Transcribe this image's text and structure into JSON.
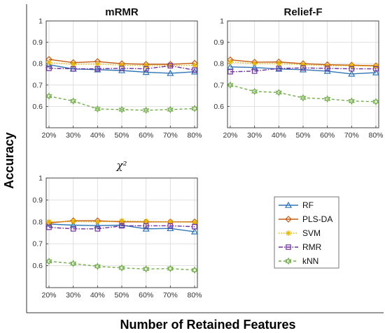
{
  "figure": {
    "ylabel": "Accuracy",
    "xlabel": "Number of Retained Features"
  },
  "legend": {
    "placement": "bottom-right",
    "entries": [
      {
        "name": "RF",
        "color": "#2e75b6",
        "marker": "triangle",
        "dash": "solid"
      },
      {
        "name": "PLS-DA",
        "color": "#c55a11",
        "marker": "diamond",
        "dash": "solid"
      },
      {
        "name": "SVM",
        "color": "#e6b800",
        "marker": "asterisk",
        "dash": "dotted"
      },
      {
        "name": "RMR",
        "color": "#7030a0",
        "marker": "square",
        "dash": "dashdot"
      },
      {
        "name": "kNN",
        "color": "#70ad47",
        "marker": "hexagram",
        "dash": "dashed"
      }
    ]
  },
  "chart_data": [
    {
      "type": "line",
      "title": "mRMR",
      "categories": [
        "20%",
        "30%",
        "40%",
        "50%",
        "60%",
        "70%",
        "80%"
      ],
      "ylim": [
        0.5,
        1
      ],
      "yticks": [
        "0.6",
        "0.7",
        "0.8",
        "0.9",
        "1"
      ],
      "grid": true,
      "series": [
        {
          "name": "RF",
          "values": [
            0.795,
            0.775,
            0.772,
            0.768,
            0.76,
            0.755,
            0.762
          ]
        },
        {
          "name": "PLS-DA",
          "values": [
            0.82,
            0.805,
            0.81,
            0.8,
            0.797,
            0.797,
            0.802
          ]
        },
        {
          "name": "SVM",
          "values": [
            0.805,
            0.797,
            0.798,
            0.793,
            0.79,
            0.792,
            0.792
          ]
        },
        {
          "name": "RMR",
          "values": [
            0.778,
            0.776,
            0.776,
            0.778,
            0.776,
            0.79,
            0.77
          ]
        },
        {
          "name": "kNN",
          "values": [
            0.648,
            0.625,
            0.588,
            0.585,
            0.582,
            0.585,
            0.59
          ]
        }
      ]
    },
    {
      "type": "line",
      "title": "Relief-F",
      "categories": [
        "20%",
        "30%",
        "40%",
        "50%",
        "60%",
        "70%",
        "80%"
      ],
      "ylim": [
        0.5,
        1
      ],
      "yticks": [
        "0.6",
        "0.7",
        "0.8",
        "0.9",
        "1"
      ],
      "grid": true,
      "series": [
        {
          "name": "RF",
          "values": [
            0.785,
            0.782,
            0.775,
            0.772,
            0.765,
            0.752,
            0.758
          ]
        },
        {
          "name": "PLS-DA",
          "values": [
            0.818,
            0.807,
            0.808,
            0.8,
            0.795,
            0.793,
            0.79
          ]
        },
        {
          "name": "SVM",
          "values": [
            0.808,
            0.8,
            0.8,
            0.795,
            0.79,
            0.79,
            0.788
          ]
        },
        {
          "name": "RMR",
          "values": [
            0.762,
            0.765,
            0.778,
            0.78,
            0.778,
            0.776,
            0.776
          ]
        },
        {
          "name": "kNN",
          "values": [
            0.7,
            0.67,
            0.665,
            0.64,
            0.635,
            0.625,
            0.622
          ]
        }
      ]
    },
    {
      "type": "line",
      "title": "χ²",
      "categories": [
        "20%",
        "30%",
        "40%",
        "50%",
        "60%",
        "70%",
        "80%"
      ],
      "ylim": [
        0.5,
        1
      ],
      "yticks": [
        "0.6",
        "0.7",
        "0.8",
        "0.9",
        "1"
      ],
      "grid": true,
      "series": [
        {
          "name": "RF",
          "values": [
            0.79,
            0.785,
            0.783,
            0.785,
            0.768,
            0.77,
            0.755
          ]
        },
        {
          "name": "PLS-DA",
          "values": [
            0.795,
            0.805,
            0.805,
            0.8,
            0.8,
            0.8,
            0.8
          ]
        },
        {
          "name": "SVM",
          "values": [
            0.8,
            0.802,
            0.8,
            0.805,
            0.802,
            0.8,
            0.798
          ]
        },
        {
          "name": "RMR",
          "values": [
            0.775,
            0.768,
            0.768,
            0.782,
            0.782,
            0.782,
            0.778
          ]
        },
        {
          "name": "kNN",
          "values": [
            0.62,
            0.61,
            0.597,
            0.59,
            0.585,
            0.587,
            0.58
          ]
        }
      ]
    }
  ]
}
